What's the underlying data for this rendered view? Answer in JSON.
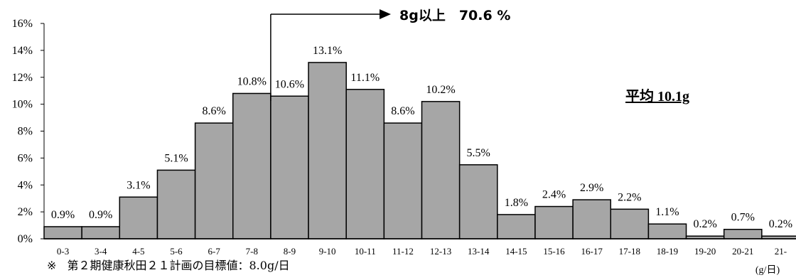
{
  "chart_data": {
    "type": "bar",
    "categories": [
      "0-3",
      "3-4",
      "4-5",
      "5-6",
      "6-7",
      "7-8",
      "8-9",
      "9-10",
      "10-11",
      "11-12",
      "12-13",
      "13-14",
      "14-15",
      "15-16",
      "16-17",
      "17-18",
      "18-19",
      "19-20",
      "20-21",
      "21-"
    ],
    "values": [
      0.9,
      0.9,
      3.1,
      5.1,
      8.6,
      10.8,
      10.6,
      13.1,
      11.1,
      8.6,
      10.2,
      5.5,
      1.8,
      2.4,
      2.9,
      2.2,
      1.1,
      0.2,
      0.7,
      0.2
    ],
    "value_labels": [
      "0.9%",
      "0.9%",
      "3.1%",
      "5.1%",
      "8.6%",
      "10.8%",
      "10.6%",
      "13.1%",
      "11.1%",
      "8.6%",
      "10.2%",
      "5.5%",
      "1.8%",
      "2.4%",
      "2.9%",
      "2.2%",
      "1.1%",
      "0.2%",
      "0.7%",
      "0.2%"
    ],
    "y_ticks": [
      "0%",
      "2%",
      "4%",
      "6%",
      "8%",
      "10%",
      "12%",
      "14%",
      "16%"
    ],
    "ylim": [
      0,
      16
    ],
    "x_unit": "(g/日)",
    "bar_color": "#a6a6a6",
    "grid": false,
    "annotations": {
      "threshold_label": "8g以上　70.6 %",
      "threshold_start_category": "8-9",
      "average_label": "平均 10.1g"
    }
  },
  "footnote": {
    "mark": "※",
    "text": "第２期健康秋田２１計画の目標値：8.0g/日"
  }
}
